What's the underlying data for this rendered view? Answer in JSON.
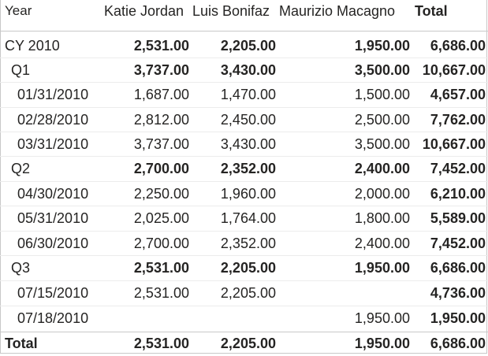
{
  "matrix": {
    "headers": {
      "year": "Year",
      "col1": "Katie Jordan",
      "col2": "Luis Bonifaz",
      "col3": "Maurizio Macagno",
      "total": "Total"
    },
    "rows": [
      {
        "label": "CY 2010",
        "v1": "2,531.00",
        "v2": "2,205.00",
        "v3": "1,950.00",
        "total": "6,686.00"
      },
      {
        "label": "Q1",
        "v1": "3,737.00",
        "v2": "3,430.00",
        "v3": "3,500.00",
        "total": "10,667.00"
      },
      {
        "label": "01/31/2010",
        "v1": "1,687.00",
        "v2": "1,470.00",
        "v3": "1,500.00",
        "total": "4,657.00"
      },
      {
        "label": "02/28/2010",
        "v1": "2,812.00",
        "v2": "2,450.00",
        "v3": "2,500.00",
        "total": "7,762.00"
      },
      {
        "label": "03/31/2010",
        "v1": "3,737.00",
        "v2": "3,430.00",
        "v3": "3,500.00",
        "total": "10,667.00"
      },
      {
        "label": "Q2",
        "v1": "2,700.00",
        "v2": "2,352.00",
        "v3": "2,400.00",
        "total": "7,452.00"
      },
      {
        "label": "04/30/2010",
        "v1": "2,250.00",
        "v2": "1,960.00",
        "v3": "2,000.00",
        "total": "6,210.00"
      },
      {
        "label": "05/31/2010",
        "v1": "2,025.00",
        "v2": "1,764.00",
        "v3": "1,800.00",
        "total": "5,589.00"
      },
      {
        "label": "06/30/2010",
        "v1": "2,700.00",
        "v2": "2,352.00",
        "v3": "2,400.00",
        "total": "7,452.00"
      },
      {
        "label": "Q3",
        "v1": "2,531.00",
        "v2": "2,205.00",
        "v3": "1,950.00",
        "total": "6,686.00"
      },
      {
        "label": "07/15/2010",
        "v1": "2,531.00",
        "v2": "2,205.00",
        "v3": "",
        "total": "4,736.00"
      },
      {
        "label": "07/18/2010",
        "v1": "",
        "v2": "",
        "v3": "1,950.00",
        "total": "1,950.00"
      }
    ],
    "total_row": {
      "label": "Total",
      "v1": "2,531.00",
      "v2": "2,205.00",
      "v3": "1,950.00",
      "total": "6,686.00"
    }
  }
}
